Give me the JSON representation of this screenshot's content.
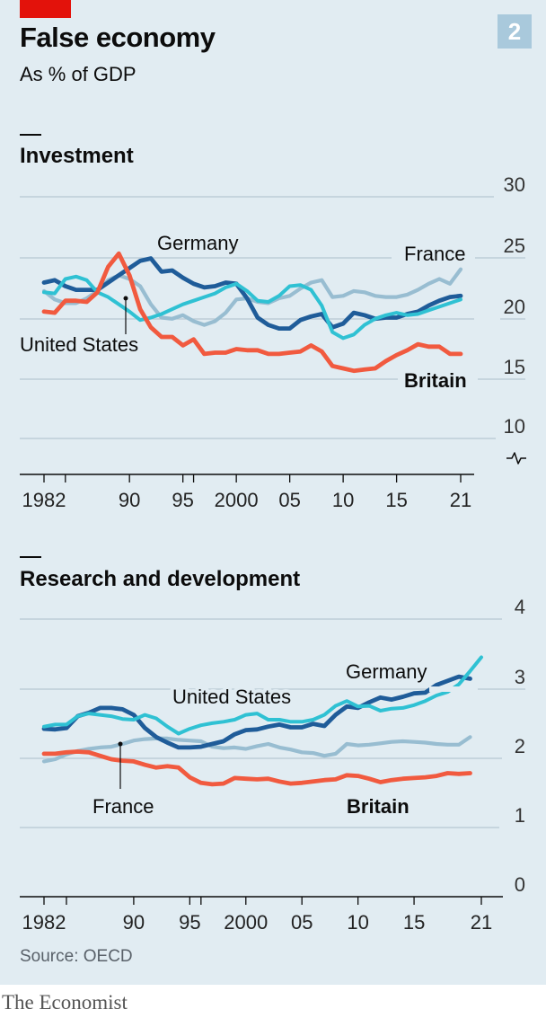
{
  "header": {
    "title": "False economy",
    "subtitle": "As % of GDP",
    "badge": "2"
  },
  "footer": {
    "source": "Source: OECD",
    "brand": "The Economist"
  },
  "colors": {
    "background": "#e1ecf2",
    "britain": "#f15a3f",
    "germany": "#1f5c99",
    "united_states": "#2fc1d3",
    "france": "#98bdd1",
    "grid": "#b6c7d1",
    "axis": "#0c0c0c",
    "accent_red": "#e3120b"
  },
  "chart_data": [
    {
      "type": "line",
      "title": "Investment",
      "ylim": [
        10,
        30
      ],
      "yticks": [
        "30",
        "25",
        "20",
        "15",
        "10"
      ],
      "xticks": [
        "1982",
        "90",
        "95",
        "2000",
        "05",
        "10",
        "15",
        "21"
      ],
      "xlim": [
        1980,
        2022
      ],
      "axis_break": true,
      "series": [
        {
          "name": "France",
          "key": "france",
          "x": [
            1982,
            1983,
            1984,
            1985,
            1986,
            1987,
            1988,
            1989,
            1990,
            1991,
            1992,
            1993,
            1994,
            1995,
            1996,
            1997,
            1998,
            1999,
            2000,
            2001,
            2002,
            2003,
            2004,
            2005,
            2006,
            2007,
            2008,
            2009,
            2010,
            2011,
            2012,
            2013,
            2014,
            2015,
            2016,
            2017,
            2018,
            2019,
            2020,
            2021
          ],
          "values": [
            22.2,
            21.5,
            21.2,
            21.2,
            21.6,
            22.2,
            23.1,
            23.5,
            23.2,
            22.6,
            21.1,
            20.0,
            19.9,
            20.2,
            19.7,
            19.4,
            19.7,
            20.4,
            21.5,
            21.6,
            21.3,
            21.2,
            21.6,
            21.8,
            22.4,
            22.9,
            23.1,
            21.7,
            21.8,
            22.2,
            22.1,
            21.8,
            21.7,
            21.7,
            21.9,
            22.3,
            22.8,
            23.2,
            22.8,
            24.0
          ]
        },
        {
          "name": "Germany",
          "key": "germany",
          "x": [
            1982,
            1983,
            1984,
            1985,
            1986,
            1987,
            1988,
            1989,
            1990,
            1991,
            1992,
            1993,
            1994,
            1995,
            1996,
            1997,
            1998,
            1999,
            2000,
            2001,
            2002,
            2003,
            2004,
            2005,
            2006,
            2007,
            2008,
            2009,
            2010,
            2011,
            2012,
            2013,
            2014,
            2015,
            2016,
            2017,
            2018,
            2019,
            2020,
            2021
          ],
          "values": [
            22.9,
            23.1,
            22.6,
            22.3,
            22.3,
            22.3,
            22.9,
            23.5,
            24.1,
            24.7,
            24.9,
            23.8,
            23.9,
            23.3,
            22.8,
            22.5,
            22.6,
            22.9,
            22.8,
            21.6,
            20.0,
            19.4,
            19.1,
            19.1,
            19.8,
            20.1,
            20.3,
            19.2,
            19.5,
            20.4,
            20.2,
            19.9,
            20.0,
            20.0,
            20.3,
            20.5,
            21.0,
            21.4,
            21.7,
            21.8
          ]
        },
        {
          "name": "United States",
          "key": "united_states",
          "x": [
            1982,
            1983,
            1984,
            1985,
            1986,
            1987,
            1988,
            1989,
            1990,
            1991,
            1992,
            1993,
            1994,
            1995,
            1996,
            1997,
            1998,
            1999,
            2000,
            2001,
            2002,
            2003,
            2004,
            2005,
            2006,
            2007,
            2008,
            2009,
            2010,
            2011,
            2012,
            2013,
            2014,
            2015,
            2016,
            2017,
            2018,
            2019,
            2020,
            2021
          ],
          "values": [
            22.1,
            22.0,
            23.2,
            23.4,
            23.1,
            22.1,
            21.7,
            21.1,
            20.5,
            19.8,
            20.0,
            20.3,
            20.7,
            21.1,
            21.4,
            21.7,
            22.0,
            22.5,
            22.8,
            22.2,
            21.4,
            21.3,
            21.8,
            22.6,
            22.7,
            22.3,
            21.0,
            18.8,
            18.3,
            18.6,
            19.4,
            19.9,
            20.2,
            20.4,
            20.2,
            20.3,
            20.6,
            20.9,
            21.2,
            21.5
          ]
        },
        {
          "name": "Britain",
          "key": "britain",
          "x": [
            1982,
            1983,
            1984,
            1985,
            1986,
            1987,
            1988,
            1989,
            1990,
            1991,
            1992,
            1993,
            1994,
            1995,
            1996,
            1997,
            1998,
            1999,
            2000,
            2001,
            2002,
            2003,
            2004,
            2005,
            2006,
            2007,
            2008,
            2009,
            2010,
            2011,
            2012,
            2013,
            2014,
            2015,
            2016,
            2017,
            2018,
            2019,
            2020,
            2021
          ],
          "values": [
            20.5,
            20.4,
            21.4,
            21.4,
            21.3,
            22.1,
            24.2,
            25.3,
            23.5,
            20.7,
            19.2,
            18.4,
            18.4,
            17.7,
            18.2,
            17.0,
            17.1,
            17.1,
            17.4,
            17.3,
            17.3,
            17.0,
            17.0,
            17.1,
            17.2,
            17.7,
            17.2,
            16.0,
            15.8,
            15.6,
            15.7,
            15.8,
            16.4,
            16.9,
            17.3,
            17.8,
            17.6,
            17.6,
            17.0,
            17.0
          ]
        }
      ],
      "labels": {
        "germany": "Germany",
        "france": "France",
        "united_states": "United States",
        "britain": "Britain"
      }
    },
    {
      "type": "line",
      "title": "Research and development",
      "ylim": [
        0,
        4
      ],
      "yticks": [
        "4",
        "3",
        "2",
        "1",
        "0"
      ],
      "xticks": [
        "1982",
        "90",
        "95",
        "2000",
        "05",
        "10",
        "15",
        "21"
      ],
      "xlim": [
        1980,
        2022
      ],
      "series": [
        {
          "name": "France",
          "key": "france",
          "x": [
            1982,
            1983,
            1984,
            1985,
            1986,
            1987,
            1988,
            1989,
            1990,
            1991,
            1992,
            1993,
            1994,
            1995,
            1996,
            1997,
            1998,
            1999,
            2000,
            2001,
            2002,
            2003,
            2004,
            2005,
            2006,
            2007,
            2008,
            2009,
            2010,
            2011,
            2012,
            2013,
            2014,
            2015,
            2016,
            2017,
            2018,
            2019,
            2020
          ],
          "values": [
            1.95,
            1.98,
            2.05,
            2.1,
            2.13,
            2.15,
            2.16,
            2.2,
            2.25,
            2.27,
            2.28,
            2.28,
            2.26,
            2.25,
            2.24,
            2.16,
            2.14,
            2.15,
            2.13,
            2.17,
            2.2,
            2.15,
            2.12,
            2.08,
            2.07,
            2.03,
            2.06,
            2.2,
            2.18,
            2.19,
            2.21,
            2.23,
            2.24,
            2.23,
            2.22,
            2.2,
            2.19,
            2.19,
            2.3
          ]
        },
        {
          "name": "United States",
          "key": "united_states",
          "x": [
            1982,
            1983,
            1984,
            1985,
            1986,
            1987,
            1988,
            1989,
            1990,
            1991,
            1992,
            1993,
            1994,
            1995,
            1996,
            1997,
            1998,
            1999,
            2000,
            2001,
            2002,
            2003,
            2004,
            2005,
            2006,
            2007,
            2008,
            2009,
            2010,
            2011,
            2012,
            2013,
            2014,
            2015,
            2016,
            2017,
            2018,
            2019,
            2020,
            2021
          ],
          "values": [
            2.45,
            2.48,
            2.48,
            2.6,
            2.64,
            2.62,
            2.6,
            2.56,
            2.55,
            2.62,
            2.57,
            2.45,
            2.35,
            2.42,
            2.47,
            2.5,
            2.52,
            2.55,
            2.62,
            2.64,
            2.55,
            2.55,
            2.52,
            2.52,
            2.55,
            2.62,
            2.75,
            2.82,
            2.74,
            2.75,
            2.68,
            2.71,
            2.72,
            2.76,
            2.82,
            2.9,
            2.95,
            3.06,
            3.25,
            3.45
          ]
        },
        {
          "name": "Germany",
          "key": "germany",
          "x": [
            1982,
            1983,
            1984,
            1985,
            1986,
            1987,
            1988,
            1989,
            1990,
            1991,
            1992,
            1993,
            1994,
            1995,
            1996,
            1997,
            1998,
            1999,
            2000,
            2001,
            2002,
            2003,
            2004,
            2005,
            2006,
            2007,
            2008,
            2009,
            2010,
            2011,
            2012,
            2013,
            2014,
            2015,
            2016,
            2017,
            2018,
            2019,
            2020
          ],
          "values": [
            2.42,
            2.41,
            2.43,
            2.6,
            2.65,
            2.72,
            2.72,
            2.7,
            2.62,
            2.43,
            2.3,
            2.22,
            2.15,
            2.15,
            2.16,
            2.2,
            2.24,
            2.34,
            2.4,
            2.41,
            2.45,
            2.48,
            2.44,
            2.44,
            2.49,
            2.46,
            2.62,
            2.74,
            2.72,
            2.8,
            2.87,
            2.84,
            2.88,
            2.93,
            2.94,
            3.05,
            3.11,
            3.17,
            3.14
          ]
        },
        {
          "name": "Britain",
          "key": "britain",
          "x": [
            1982,
            1983,
            1984,
            1985,
            1986,
            1987,
            1988,
            1989,
            1990,
            1991,
            1992,
            1993,
            1994,
            1995,
            1996,
            1997,
            1998,
            1999,
            2000,
            2001,
            2002,
            2003,
            2004,
            2005,
            2006,
            2007,
            2008,
            2009,
            2010,
            2011,
            2012,
            2013,
            2014,
            2015,
            2016,
            2017,
            2018,
            2019,
            2020
          ],
          "values": [
            2.06,
            2.06,
            2.08,
            2.09,
            2.08,
            2.03,
            1.98,
            1.96,
            1.95,
            1.9,
            1.86,
            1.88,
            1.86,
            1.72,
            1.64,
            1.62,
            1.63,
            1.71,
            1.7,
            1.69,
            1.7,
            1.66,
            1.63,
            1.64,
            1.66,
            1.68,
            1.69,
            1.75,
            1.74,
            1.7,
            1.65,
            1.68,
            1.7,
            1.71,
            1.72,
            1.74,
            1.78,
            1.77,
            1.78
          ]
        }
      ],
      "labels": {
        "germany": "Germany",
        "united_states": "United States",
        "france": "France",
        "britain": "Britain"
      }
    }
  ]
}
